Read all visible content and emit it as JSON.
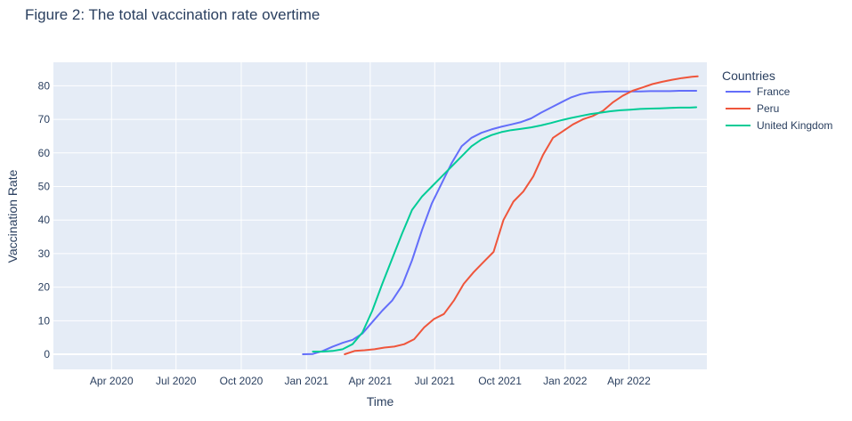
{
  "chart_data": {
    "type": "line",
    "title": "Figure 2: The total vaccination rate overtime",
    "xlabel": "Time",
    "ylabel": "Vaccination Rate",
    "x_type": "date",
    "xlim": [
      "2020-01-10",
      "2022-07-20"
    ],
    "ylim": [
      -4.5,
      87
    ],
    "x_ticks": [
      {
        "date": "2020-04-01",
        "label": "Apr 2020"
      },
      {
        "date": "2020-07-01",
        "label": "Jul 2020"
      },
      {
        "date": "2020-10-01",
        "label": "Oct 2020"
      },
      {
        "date": "2021-01-01",
        "label": "Jan 2021"
      },
      {
        "date": "2021-04-01",
        "label": "Apr 2021"
      },
      {
        "date": "2021-07-01",
        "label": "Jul 2021"
      },
      {
        "date": "2021-10-01",
        "label": "Oct 2021"
      },
      {
        "date": "2022-01-01",
        "label": "Jan 2022"
      },
      {
        "date": "2022-04-01",
        "label": "Apr 2022"
      }
    ],
    "y_ticks": [
      0,
      10,
      20,
      30,
      40,
      50,
      60,
      70,
      80
    ],
    "grid": true,
    "plot_background": "#e5ecf6",
    "grid_color": "#ffffff",
    "legend": {
      "title": "Countries",
      "position": "right"
    },
    "series": [
      {
        "name": "France",
        "color": "#636efa",
        "points": [
          [
            "2020-12-27",
            0.0
          ],
          [
            "2021-01-10",
            0.1
          ],
          [
            "2021-01-24",
            1.0
          ],
          [
            "2021-02-07",
            2.3
          ],
          [
            "2021-02-21",
            3.4
          ],
          [
            "2021-03-07",
            4.3
          ],
          [
            "2021-03-21",
            6.2
          ],
          [
            "2021-04-04",
            9.6
          ],
          [
            "2021-04-18",
            13.0
          ],
          [
            "2021-05-02",
            16.0
          ],
          [
            "2021-05-16",
            20.5
          ],
          [
            "2021-05-30",
            28.0
          ],
          [
            "2021-06-13",
            37.0
          ],
          [
            "2021-06-27",
            45.0
          ],
          [
            "2021-07-11",
            51.0
          ],
          [
            "2021-07-25",
            57.0
          ],
          [
            "2021-08-08",
            62.0
          ],
          [
            "2021-08-22",
            64.5
          ],
          [
            "2021-09-05",
            66.0
          ],
          [
            "2021-09-19",
            67.0
          ],
          [
            "2021-10-03",
            67.8
          ],
          [
            "2021-10-17",
            68.5
          ],
          [
            "2021-10-31",
            69.2
          ],
          [
            "2021-11-14",
            70.3
          ],
          [
            "2021-11-28",
            72.0
          ],
          [
            "2021-12-12",
            73.5
          ],
          [
            "2021-12-26",
            75.0
          ],
          [
            "2022-01-09",
            76.5
          ],
          [
            "2022-01-23",
            77.5
          ],
          [
            "2022-02-06",
            78.0
          ],
          [
            "2022-02-20",
            78.2
          ],
          [
            "2022-03-06",
            78.3
          ],
          [
            "2022-03-20",
            78.3
          ],
          [
            "2022-04-03",
            78.3
          ],
          [
            "2022-04-17",
            78.3
          ],
          [
            "2022-05-01",
            78.4
          ],
          [
            "2022-05-15",
            78.4
          ],
          [
            "2022-05-29",
            78.4
          ],
          [
            "2022-06-12",
            78.5
          ],
          [
            "2022-06-26",
            78.5
          ],
          [
            "2022-07-05",
            78.5
          ]
        ]
      },
      {
        "name": "Peru",
        "color": "#ef553b",
        "points": [
          [
            "2021-02-24",
            0.0
          ],
          [
            "2021-03-10",
            1.0
          ],
          [
            "2021-03-24",
            1.2
          ],
          [
            "2021-04-07",
            1.5
          ],
          [
            "2021-04-21",
            2.0
          ],
          [
            "2021-05-05",
            2.3
          ],
          [
            "2021-05-19",
            3.0
          ],
          [
            "2021-06-02",
            4.5
          ],
          [
            "2021-06-16",
            8.0
          ],
          [
            "2021-06-30",
            10.5
          ],
          [
            "2021-07-14",
            12.0
          ],
          [
            "2021-07-28",
            16.0
          ],
          [
            "2021-08-11",
            21.0
          ],
          [
            "2021-08-25",
            24.5
          ],
          [
            "2021-09-08",
            27.5
          ],
          [
            "2021-09-22",
            30.5
          ],
          [
            "2021-10-06",
            40.0
          ],
          [
            "2021-10-20",
            45.5
          ],
          [
            "2021-11-03",
            48.5
          ],
          [
            "2021-11-17",
            53.0
          ],
          [
            "2021-12-01",
            59.5
          ],
          [
            "2021-12-15",
            64.5
          ],
          [
            "2021-12-29",
            66.5
          ],
          [
            "2022-01-12",
            68.5
          ],
          [
            "2022-01-26",
            70.0
          ],
          [
            "2022-02-09",
            71.0
          ],
          [
            "2022-02-23",
            72.5
          ],
          [
            "2022-03-09",
            75.0
          ],
          [
            "2022-03-23",
            77.0
          ],
          [
            "2022-04-06",
            78.5
          ],
          [
            "2022-04-20",
            79.5
          ],
          [
            "2022-05-04",
            80.5
          ],
          [
            "2022-05-18",
            81.2
          ],
          [
            "2022-06-01",
            81.8
          ],
          [
            "2022-06-15",
            82.3
          ],
          [
            "2022-06-29",
            82.7
          ],
          [
            "2022-07-07",
            82.8
          ]
        ]
      },
      {
        "name": "United Kingdom",
        "color": "#00cc96",
        "points": [
          [
            "2021-01-10",
            0.8
          ],
          [
            "2021-01-24",
            0.8
          ],
          [
            "2021-02-07",
            1.0
          ],
          [
            "2021-02-21",
            1.5
          ],
          [
            "2021-03-07",
            3.0
          ],
          [
            "2021-03-21",
            6.5
          ],
          [
            "2021-04-04",
            13.0
          ],
          [
            "2021-04-18",
            21.0
          ],
          [
            "2021-05-02",
            28.5
          ],
          [
            "2021-05-16",
            36.0
          ],
          [
            "2021-05-30",
            43.0
          ],
          [
            "2021-06-13",
            47.0
          ],
          [
            "2021-06-27",
            50.0
          ],
          [
            "2021-07-11",
            53.0
          ],
          [
            "2021-07-25",
            56.0
          ],
          [
            "2021-08-08",
            59.0
          ],
          [
            "2021-08-22",
            62.0
          ],
          [
            "2021-09-05",
            64.0
          ],
          [
            "2021-09-19",
            65.3
          ],
          [
            "2021-10-03",
            66.2
          ],
          [
            "2021-10-17",
            66.8
          ],
          [
            "2021-10-31",
            67.2
          ],
          [
            "2021-11-14",
            67.6
          ],
          [
            "2021-11-28",
            68.2
          ],
          [
            "2021-12-12",
            68.9
          ],
          [
            "2021-12-26",
            69.7
          ],
          [
            "2022-01-09",
            70.4
          ],
          [
            "2022-01-23",
            71.0
          ],
          [
            "2022-02-06",
            71.6
          ],
          [
            "2022-02-20",
            72.0
          ],
          [
            "2022-03-06",
            72.4
          ],
          [
            "2022-03-20",
            72.7
          ],
          [
            "2022-04-03",
            72.9
          ],
          [
            "2022-04-17",
            73.1
          ],
          [
            "2022-05-01",
            73.2
          ],
          [
            "2022-05-15",
            73.3
          ],
          [
            "2022-05-29",
            73.4
          ],
          [
            "2022-06-12",
            73.5
          ],
          [
            "2022-06-26",
            73.5
          ],
          [
            "2022-07-05",
            73.6
          ]
        ]
      }
    ]
  }
}
